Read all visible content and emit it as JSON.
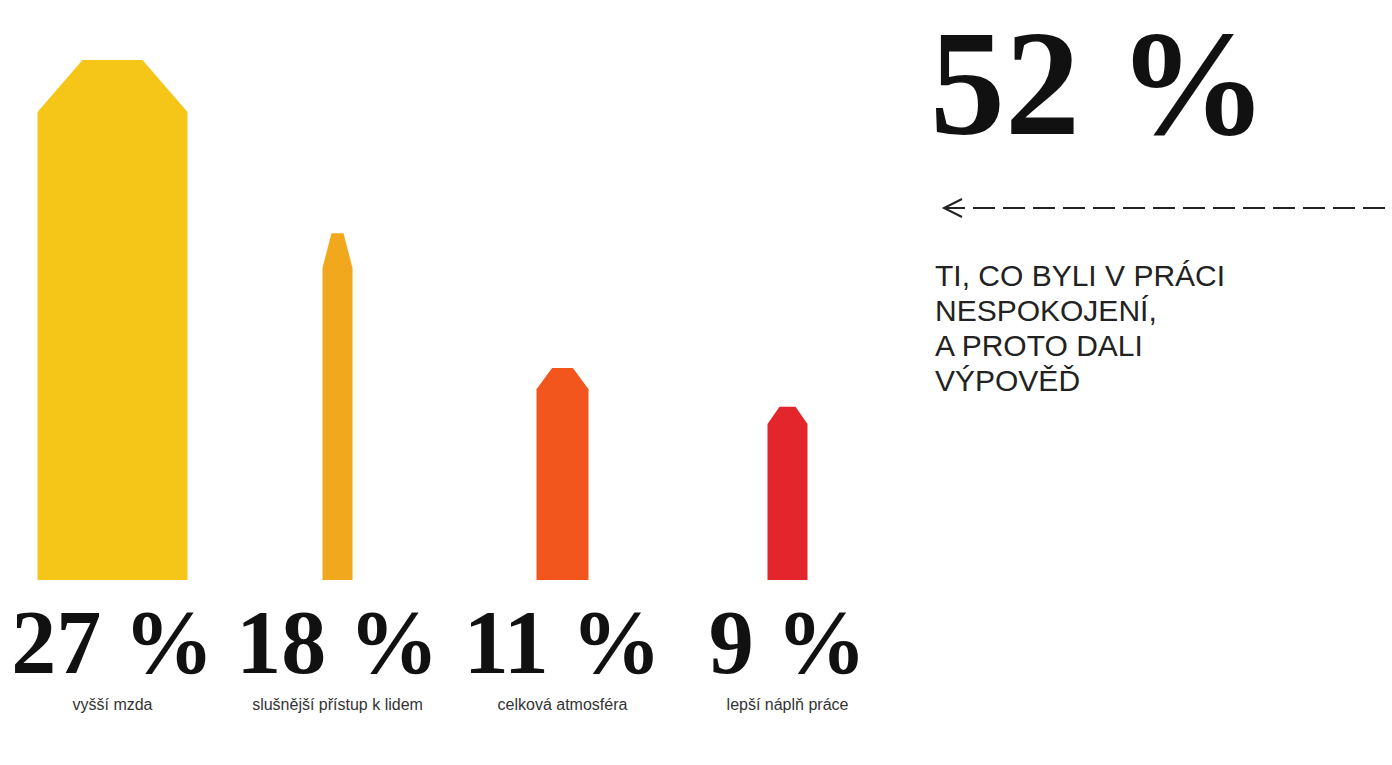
{
  "chart_data": {
    "type": "bar",
    "categories": [
      "vyšší mzda",
      "slušnější přístup k lidem",
      "celková atmosféra",
      "lepší náplň práce"
    ],
    "values": [
      27,
      18,
      11,
      9
    ],
    "value_labels": [
      "27 %",
      "18 %",
      "11 %",
      "9 %"
    ],
    "data_labels": true,
    "colors": [
      "#f5c518",
      "#f2a81d",
      "#f2561d",
      "#e2262b"
    ],
    "ylim": [
      0,
      27
    ],
    "tick_labels": false,
    "grid": false,
    "annotation": {
      "label": "52 %",
      "lines": [
        "TI, CO BYLI V PRÁCI",
        "NESPOKOJENÍ,",
        "A PROTO DALI",
        "VÝPOVĚĎ"
      ]
    }
  }
}
